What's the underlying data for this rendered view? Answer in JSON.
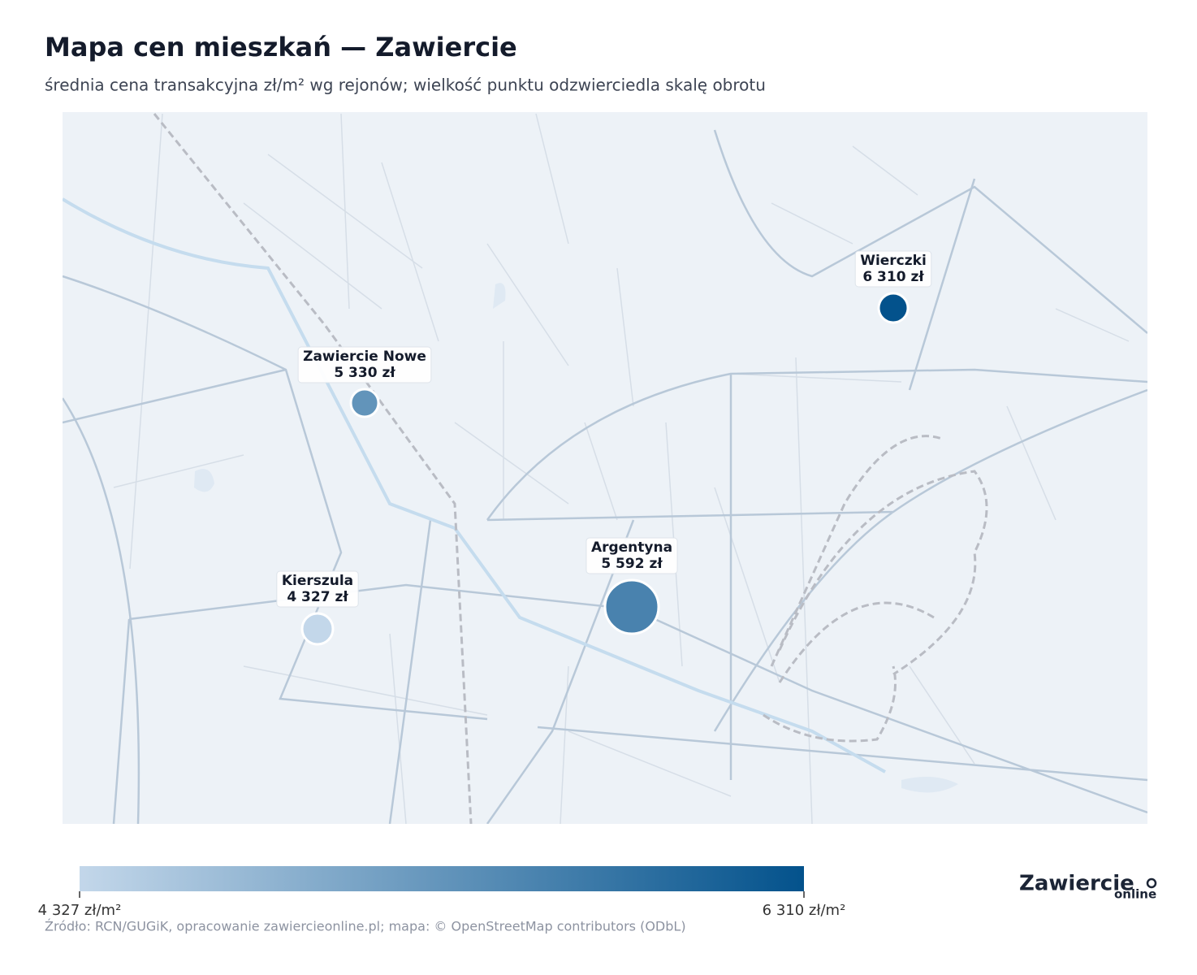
{
  "header": {
    "title": "Mapa cen mieszkań — Zawiercie",
    "subtitle": "średnia cena transakcyjna zł/m² wg rejonów; wielkość punktu odzwierciedla skalę obrotu"
  },
  "map": {
    "points": [
      {
        "name": "Wierczki",
        "value": 6310,
        "value_label": "6 310 zł"
      },
      {
        "name": "Zawiercie Nowe",
        "value": 5330,
        "value_label": "5 330 zł"
      },
      {
        "name": "Argentyna",
        "value": 5592,
        "value_label": "5 592 zł"
      },
      {
        "name": "Kierszula",
        "value": 4327,
        "value_label": "4 327 zł"
      }
    ]
  },
  "legend": {
    "colors": [
      "#c3d7ea",
      "#03528c"
    ],
    "ticks": [
      {
        "value": 4327,
        "label": "4 327 zł/m²"
      },
      {
        "value": 6310,
        "label": "6 310 zł/m²"
      }
    ]
  },
  "footer": {
    "source": "Źródło: RCN/GUGiK, opracowanie zawiercieonline.pl; mapa: © OpenStreetMap contributors (ODbL)"
  },
  "logo": {
    "name": "Zawiercie",
    "suffix": "online"
  }
}
